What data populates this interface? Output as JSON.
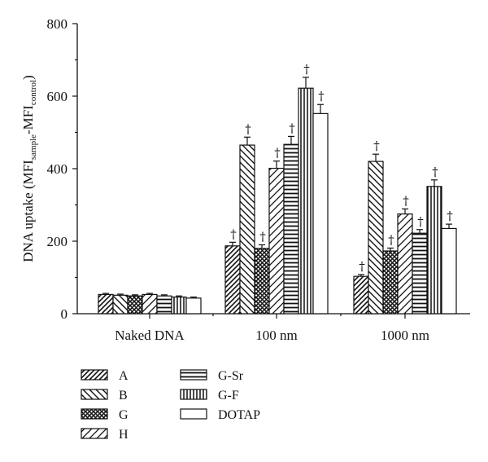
{
  "chart_data": {
    "type": "bar",
    "title": "",
    "xlabel": "",
    "ylabel": "DNA uptake (MFI",
    "ylabel_parts": [
      "DNA uptake (MFI",
      "sample",
      "-MFI",
      "control",
      ")"
    ],
    "ylim": [
      0,
      800
    ],
    "yticks": [
      "0",
      "200",
      "400",
      "600",
      "800"
    ],
    "categories": [
      "Naked DNA",
      "100 nm",
      "1000 nm"
    ],
    "series": [
      {
        "name": "A",
        "pattern": "diag-right",
        "values": [
          53,
          187,
          103
        ],
        "errors": [
          3,
          10,
          5
        ],
        "dagger": [
          false,
          true,
          true
        ]
      },
      {
        "name": "B",
        "pattern": "diag-left",
        "values": [
          51,
          465,
          420
        ],
        "errors": [
          3,
          22,
          20
        ],
        "dagger": [
          false,
          true,
          true
        ]
      },
      {
        "name": "G",
        "pattern": "crosshatch",
        "values": [
          49,
          180,
          173
        ],
        "errors": [
          3,
          10,
          8
        ],
        "dagger": [
          false,
          true,
          true
        ]
      },
      {
        "name": "H",
        "pattern": "diag-right-wide",
        "values": [
          53,
          401,
          275
        ],
        "errors": [
          3,
          20,
          14
        ],
        "dagger": [
          false,
          true,
          true
        ]
      },
      {
        "name": "G-Sr",
        "pattern": "horizontal",
        "values": [
          49,
          467,
          222
        ],
        "errors": [
          3,
          22,
          10
        ],
        "dagger": [
          false,
          true,
          true
        ]
      },
      {
        "name": "G-F",
        "pattern": "vertical",
        "values": [
          46,
          622,
          351
        ],
        "errors": [
          3,
          30,
          18
        ],
        "dagger": [
          false,
          true,
          true
        ]
      },
      {
        "name": "DOTAP",
        "pattern": "empty",
        "values": [
          43,
          552,
          235
        ],
        "errors": [
          3,
          25,
          12
        ],
        "dagger": [
          false,
          true,
          true
        ]
      }
    ],
    "legend_position": "bottom-left",
    "marker": "†"
  }
}
